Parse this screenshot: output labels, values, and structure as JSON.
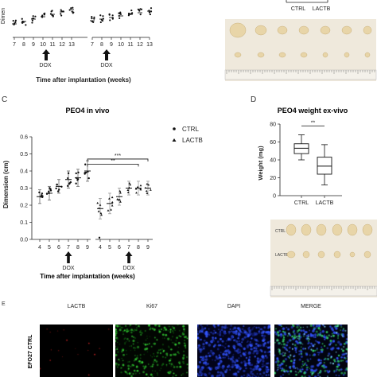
{
  "panel_letters": {
    "c": "C",
    "d": "D",
    "e": "E"
  },
  "top_left": {
    "ylabel": "Dimen",
    "x_ticks": [
      "7",
      "8",
      "9",
      "10",
      "11",
      "12",
      "13",
      "7",
      "8",
      "9",
      "10",
      "11",
      "12",
      "13"
    ],
    "dox_label": "DOX",
    "xlabel": "Time after implantation (weeks)"
  },
  "top_right": {
    "legend_ctrl": "CTRL",
    "legend_lactb": "LACTB"
  },
  "photo_row_labels": {
    "ctrl": "CTRL",
    "lactb": "LACTB"
  },
  "panel_e": {
    "columns": [
      "LACTB",
      "Ki67",
      "DAPI",
      "MERGE"
    ],
    "row_label": "EFO27 CTRL"
  },
  "colors": {
    "box_fill": "#ffffff",
    "dots": "#1a1a1a",
    "mean_bar": "#1a1a1a"
  },
  "chart_data": [
    {
      "type": "scatter",
      "title": "PEO4 in vivo",
      "xlabel": "Time after implantation (weeks)",
      "ylabel": "Dimension (cm)",
      "ylim": [
        0,
        0.6
      ],
      "yticks": [
        "0.0",
        "0.1",
        "0.2",
        "0.3",
        "0.4",
        "0.5",
        "0.6"
      ],
      "categories": [
        "4",
        "5",
        "6",
        "7",
        "8",
        "9",
        "4",
        "5",
        "6",
        "7",
        "8",
        "9"
      ],
      "dox_markers": [
        "DOX",
        "DOX"
      ],
      "legend": [
        "CTRL",
        "LACTB"
      ],
      "legend_placement": "top-right",
      "significance": [
        {
          "label": "***",
          "from_index": 5,
          "to_index": 11
        },
        {
          "label": "**",
          "from_index": 5,
          "to_index": 10
        }
      ],
      "series": [
        {
          "name": "CTRL",
          "x_index": [
            0,
            1,
            2,
            3,
            4,
            5
          ],
          "values": [
            0.25,
            0.27,
            0.31,
            0.35,
            0.36,
            0.4
          ],
          "errors": [
            0.04,
            0.04,
            0.04,
            0.05,
            0.05,
            0.06
          ]
        },
        {
          "name": "LACTB",
          "x_index": [
            6,
            7,
            8,
            9,
            10,
            11
          ],
          "values": [
            0.18,
            0.21,
            0.25,
            0.3,
            0.3,
            0.3
          ],
          "errors": [
            0.06,
            0.06,
            0.05,
            0.04,
            0.04,
            0.04
          ]
        }
      ]
    },
    {
      "type": "box",
      "title": "PEO4 weight ex-vivo",
      "xlabel": "",
      "ylabel": "Weight (mg)",
      "ylim": [
        0,
        80
      ],
      "yticks": [
        "0",
        "20",
        "40",
        "60",
        "80"
      ],
      "categories": [
        "CTRL",
        "LACTB"
      ],
      "significance": [
        {
          "label": "**",
          "from_index": 0,
          "to_index": 1
        }
      ],
      "boxes": [
        {
          "name": "CTRL",
          "min": 40,
          "q1": 47,
          "median": 53,
          "q3": 58,
          "max": 68
        },
        {
          "name": "LACTB",
          "min": 12,
          "q1": 24,
          "median": 33,
          "q3": 43,
          "max": 57
        }
      ]
    }
  ]
}
